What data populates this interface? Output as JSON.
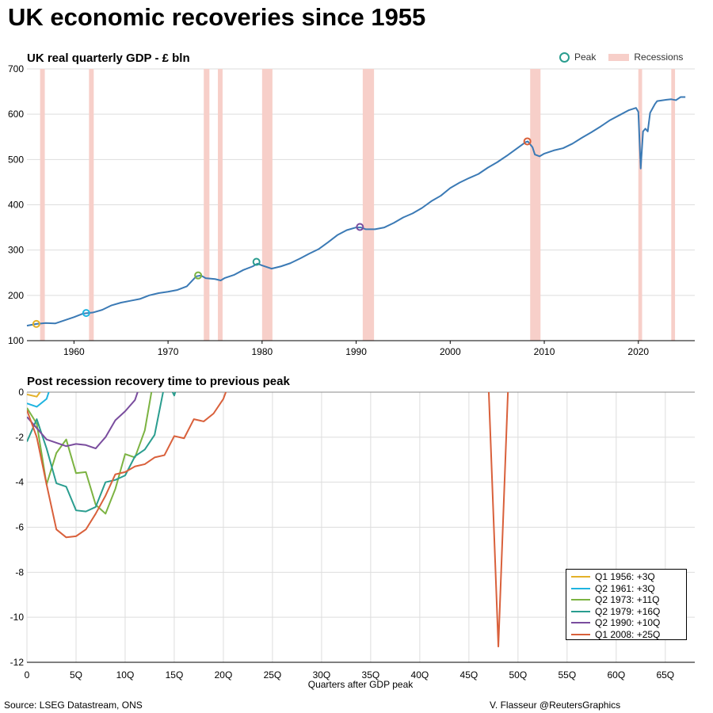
{
  "title": "UK economic recoveries since 1955",
  "source": "Source: LSEG Datastream, ONS",
  "credit": "V. Flasseur @ReutersGraphics",
  "top_legend": {
    "peak": "Peak",
    "recessions": "Recessions"
  },
  "colors": {
    "line": "#3b7ab5",
    "recession": "#f7cfc9",
    "grid": "#dddddd"
  },
  "chart_data": [
    {
      "type": "line",
      "title": "UK real quarterly GDP - £ bln",
      "ylim": [
        100,
        700
      ],
      "yticks": [
        100,
        200,
        300,
        400,
        500,
        600,
        700
      ],
      "xlim": [
        1955.0,
        2026.0
      ],
      "xticks": [
        1960,
        1970,
        1980,
        1990,
        2000,
        2010,
        2020
      ],
      "series": [
        {
          "points": [
            [
              1955.0,
              133
            ],
            [
              1956.0,
              137
            ],
            [
              1957.0,
              139
            ],
            [
              1958.0,
              138
            ],
            [
              1959.0,
              145
            ],
            [
              1960.0,
              152
            ],
            [
              1961.0,
              160
            ],
            [
              1962.0,
              162
            ],
            [
              1963.0,
              168
            ],
            [
              1964.0,
              178
            ],
            [
              1965.0,
              184
            ],
            [
              1966.0,
              188
            ],
            [
              1967.0,
              192
            ],
            [
              1968.0,
              200
            ],
            [
              1969.0,
              205
            ],
            [
              1970.0,
              208
            ],
            [
              1971.0,
              212
            ],
            [
              1972.0,
              220
            ],
            [
              1973.0,
              242
            ],
            [
              1973.5,
              244
            ],
            [
              1974.0,
              238
            ],
            [
              1975.0,
              236
            ],
            [
              1975.6,
              233
            ],
            [
              1976.0,
              238
            ],
            [
              1977.0,
              245
            ],
            [
              1978.0,
              256
            ],
            [
              1979.0,
              264
            ],
            [
              1979.5,
              270
            ],
            [
              1980.0,
              266
            ],
            [
              1981.0,
              259
            ],
            [
              1982.0,
              264
            ],
            [
              1983.0,
              271
            ],
            [
              1984.0,
              281
            ],
            [
              1985.0,
              292
            ],
            [
              1986.0,
              302
            ],
            [
              1987.0,
              317
            ],
            [
              1988.0,
              333
            ],
            [
              1989.0,
              344
            ],
            [
              1990.0,
              350
            ],
            [
              1990.5,
              350
            ],
            [
              1991.0,
              346
            ],
            [
              1992.0,
              346
            ],
            [
              1993.0,
              350
            ],
            [
              1994.0,
              360
            ],
            [
              1995.0,
              372
            ],
            [
              1996.0,
              381
            ],
            [
              1997.0,
              393
            ],
            [
              1998.0,
              408
            ],
            [
              1999.0,
              420
            ],
            [
              2000.0,
              437
            ],
            [
              2001.0,
              449
            ],
            [
              2002.0,
              459
            ],
            [
              2003.0,
              468
            ],
            [
              2004.0,
              482
            ],
            [
              2005.0,
              494
            ],
            [
              2006.0,
              508
            ],
            [
              2007.0,
              523
            ],
            [
              2008.0,
              538
            ],
            [
              2008.25,
              540
            ],
            [
              2008.75,
              527
            ],
            [
              2009.0,
              511
            ],
            [
              2009.5,
              507
            ],
            [
              2010.0,
              513
            ],
            [
              2011.0,
              520
            ],
            [
              2012.0,
              525
            ],
            [
              2013.0,
              535
            ],
            [
              2014.0,
              548
            ],
            [
              2015.0,
              560
            ],
            [
              2016.0,
              573
            ],
            [
              2017.0,
              587
            ],
            [
              2018.0,
              598
            ],
            [
              2019.0,
              609
            ],
            [
              2019.75,
              614
            ],
            [
              2020.0,
              605
            ],
            [
              2020.25,
              480
            ],
            [
              2020.5,
              562
            ],
            [
              2020.75,
              568
            ],
            [
              2021.0,
              562
            ],
            [
              2021.25,
              603
            ],
            [
              2021.75,
              622
            ],
            [
              2022.0,
              629
            ],
            [
              2023.0,
              632
            ],
            [
              2023.5,
              633
            ],
            [
              2024.0,
              631
            ],
            [
              2024.5,
              638
            ],
            [
              2025.0,
              638
            ]
          ]
        }
      ],
      "recessions": [
        [
          1956.4,
          1956.9
        ],
        [
          1961.6,
          1962.1
        ],
        [
          1973.8,
          1974.4
        ],
        [
          1975.3,
          1975.8
        ],
        [
          1980.0,
          1981.1
        ],
        [
          1990.7,
          1991.9
        ],
        [
          2008.5,
          2009.6
        ],
        [
          2020.0,
          2020.4
        ],
        [
          2023.5,
          2023.9
        ]
      ],
      "peaks": [
        {
          "x": 1956.0,
          "y": 137,
          "color": "#e3b129"
        },
        {
          "x": 1961.3,
          "y": 161,
          "color": "#1fb4e0"
        },
        {
          "x": 1973.2,
          "y": 244,
          "color": "#7cb342"
        },
        {
          "x": 1979.4,
          "y": 274,
          "color": "#2a9d8f"
        },
        {
          "x": 1990.4,
          "y": 351,
          "color": "#7a4d9e"
        },
        {
          "x": 2008.2,
          "y": 540,
          "color": "#d9603b"
        }
      ]
    },
    {
      "type": "line",
      "title": "Post recession recovery time to previous peak",
      "xlabel": "Quarters after GDP peak",
      "ylim": [
        -12,
        0
      ],
      "yticks": [
        0,
        -2,
        -4,
        -6,
        -8,
        -10,
        -12
      ],
      "xlim": [
        0,
        68
      ],
      "xticks": [
        0,
        5,
        10,
        15,
        20,
        25,
        30,
        35,
        40,
        45,
        50,
        55,
        60,
        65
      ],
      "xtick_labels": [
        "0",
        "5Q",
        "10Q",
        "15Q",
        "20Q",
        "25Q",
        "30Q",
        "35Q",
        "40Q",
        "45Q",
        "50Q",
        "55Q",
        "60Q",
        "65Q"
      ],
      "ytick_labels": [
        "0",
        "-2",
        "-4",
        "-6",
        "-8",
        "-10",
        "-12"
      ],
      "series": [
        {
          "name": "Q1 1956: +3Q",
          "color": "#e3b129",
          "points": [
            [
              0,
              -0.1
            ],
            [
              1,
              -0.2
            ],
            [
              2,
              0.4
            ]
          ]
        },
        {
          "name": "Q2 1961: +3Q",
          "color": "#1fb4e0",
          "points": [
            [
              0,
              -0.5
            ],
            [
              1,
              -0.65
            ],
            [
              2,
              -0.3
            ],
            [
              2.3,
              0.1
            ]
          ]
        },
        {
          "name": "Q2 1973: +11Q",
          "color": "#7cb342",
          "points": [
            [
              0,
              -0.7
            ],
            [
              1,
              -1.4
            ],
            [
              2,
              -4.1
            ],
            [
              3,
              -2.7
            ],
            [
              4,
              -2.1
            ],
            [
              5,
              -3.6
            ],
            [
              6,
              -3.55
            ],
            [
              7,
              -5.0
            ],
            [
              8,
              -5.4
            ],
            [
              9,
              -4.3
            ],
            [
              10,
              -2.75
            ],
            [
              11,
              -2.9
            ],
            [
              12,
              -1.7
            ],
            [
              12.8,
              0.3
            ]
          ]
        },
        {
          "name": "Q2 1979: +16Q",
          "color": "#2a9d8f",
          "points": [
            [
              0,
              -2.2
            ],
            [
              1,
              -1.2
            ],
            [
              2,
              -2.5
            ],
            [
              3,
              -4.05
            ],
            [
              4,
              -4.2
            ],
            [
              5,
              -5.25
            ],
            [
              6,
              -5.3
            ],
            [
              7,
              -5.1
            ],
            [
              8,
              -4.0
            ],
            [
              9,
              -3.9
            ],
            [
              10,
              -3.7
            ],
            [
              11,
              -2.85
            ],
            [
              12,
              -2.55
            ],
            [
              13,
              -1.9
            ],
            [
              14,
              0.3
            ],
            [
              14.5,
              0.3
            ],
            [
              15,
              -0.15
            ],
            [
              15.3,
              0.3
            ]
          ]
        },
        {
          "name": "Q2 1990: +10Q",
          "color": "#7a4d9e",
          "points": [
            [
              0,
              -1.1
            ],
            [
              1,
              -1.6
            ],
            [
              2,
              -2.1
            ],
            [
              3,
              -2.25
            ],
            [
              4,
              -2.4
            ],
            [
              5,
              -2.3
            ],
            [
              6,
              -2.35
            ],
            [
              7,
              -2.5
            ],
            [
              8,
              -2.0
            ],
            [
              9,
              -1.25
            ],
            [
              10,
              -0.85
            ],
            [
              11,
              -0.35
            ],
            [
              11.5,
              0.3
            ]
          ]
        },
        {
          "name": "Q1 2008: +25Q",
          "color": "#d9603b",
          "points": [
            [
              0,
              -0.8
            ],
            [
              1,
              -2.0
            ],
            [
              2,
              -4.1
            ],
            [
              3,
              -6.1
            ],
            [
              4,
              -6.45
            ],
            [
              5,
              -6.4
            ],
            [
              6,
              -6.1
            ],
            [
              7,
              -5.4
            ],
            [
              8,
              -4.6
            ],
            [
              9,
              -3.65
            ],
            [
              10,
              -3.55
            ],
            [
              11,
              -3.3
            ],
            [
              12,
              -3.2
            ],
            [
              13,
              -2.9
            ],
            [
              14,
              -2.8
            ],
            [
              15,
              -1.95
            ],
            [
              16,
              -2.05
            ],
            [
              17,
              -1.2
            ],
            [
              18,
              -1.3
            ],
            [
              19,
              -0.95
            ],
            [
              20,
              -0.3
            ],
            [
              20.5,
              0.3
            ],
            [
              47,
              0.3
            ],
            [
              48,
              -11.3
            ],
            [
              49,
              0.3
            ]
          ]
        }
      ]
    }
  ]
}
